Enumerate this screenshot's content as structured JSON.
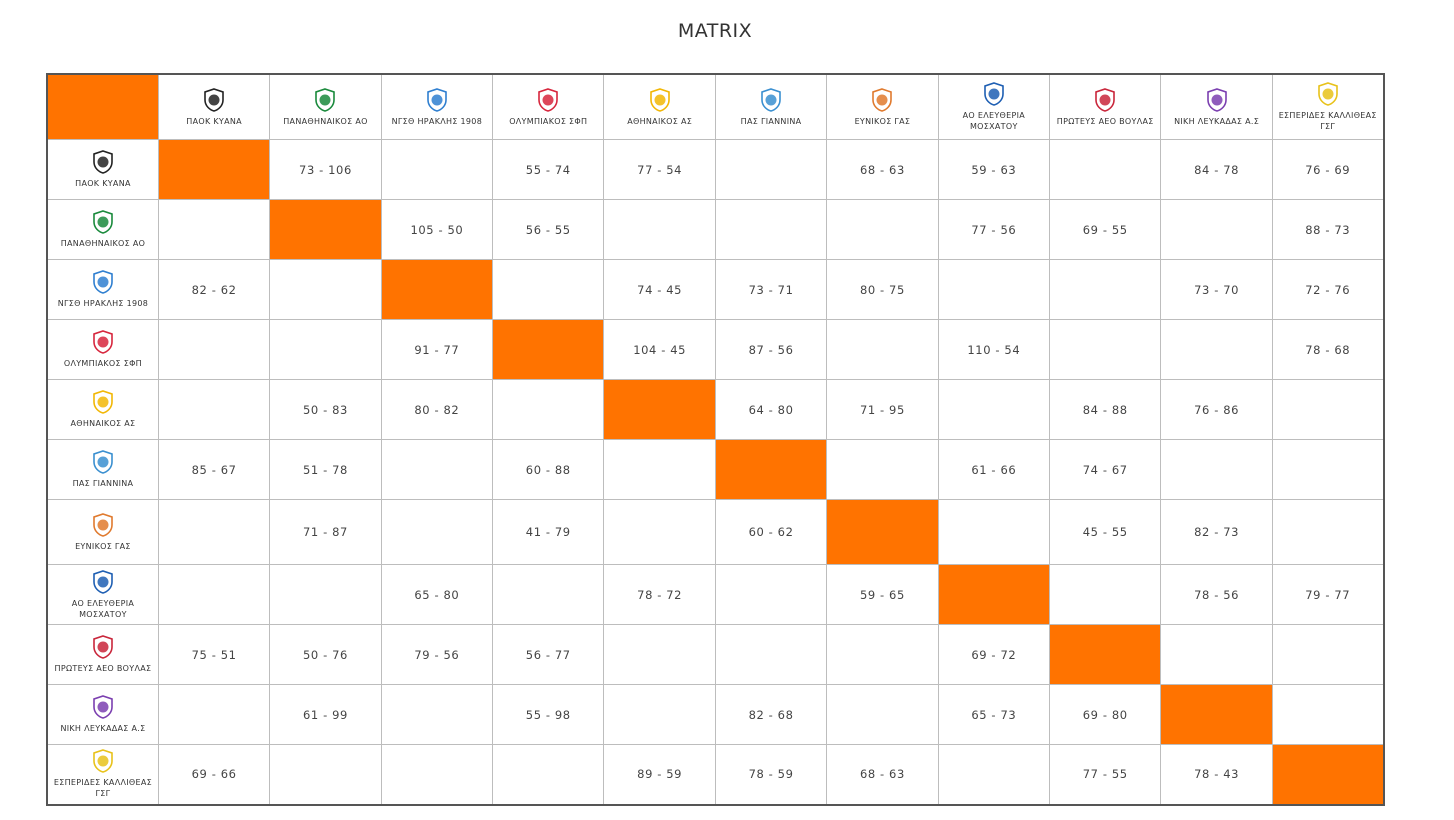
{
  "title": "MATRIX",
  "teams": [
    {
      "name": "ΠΑΟΚ ΚΥΑΝΑ",
      "icon": "paok-logo-icon",
      "color": "#222222"
    },
    {
      "name": "ΠΑΝΑΘΗΝΑΙΚΟΣ ΑΟ",
      "icon": "panathinaikos-logo-icon",
      "color": "#1a8a3c"
    },
    {
      "name": "ΝΓΣΘ ΗΡΑΚΛΗΣ 1908",
      "icon": "iraklis-logo-icon",
      "color": "#2f7fd0"
    },
    {
      "name": "ΟΛΥΜΠΙΑΚΟΣ ΣΦΠ",
      "icon": "olympiakos-logo-icon",
      "color": "#d7263d"
    },
    {
      "name": "ΑΘΗΝΑΙΚΟΣ ΑΣ",
      "icon": "athinaikos-logo-icon",
      "color": "#f2b705"
    },
    {
      "name": "ΠΑΣ ΓΙΑΝΝΙΝΑ",
      "icon": "pas-giannina-logo-icon",
      "color": "#3a8fd0"
    },
    {
      "name": "ΕΥΝΙΚΟΣ ΓΑΣ",
      "icon": "eynikos-logo-icon",
      "color": "#e07a2e"
    },
    {
      "name": "ΑΟ ΕΛΕΥΘΕΡΙΑ ΜΟΣΧΑΤΟΥ",
      "icon": "eleftheria-logo-icon",
      "color": "#1e5fb3"
    },
    {
      "name": "ΠΡΩΤΕΥΣ ΑΕΟ ΒΟΥΛΑΣ",
      "icon": "proteas-logo-icon",
      "color": "#c9263b"
    },
    {
      "name": "ΝΙΚΗ ΛΕΥΚΑΔΑΣ Α.Σ",
      "icon": "niki-logo-icon",
      "color": "#7b3fb0"
    },
    {
      "name": "ΕΣΠΕΡΙΔΕΣ ΚΑΛΛΙΘΕΑΣ ΓΣΓ",
      "icon": "esperides-logo-icon",
      "color": "#e8c21a"
    }
  ],
  "results": [
    [
      "",
      "73 - 106",
      "",
      "55 - 74",
      "77 - 54",
      "",
      "68 - 63",
      "59 - 63",
      "",
      "84 - 78",
      "76 - 69"
    ],
    [
      "",
      "",
      "105 - 50",
      "56 - 55",
      "",
      "",
      "",
      "77 - 56",
      "69 - 55",
      "",
      "88 - 73"
    ],
    [
      "82 - 62",
      "",
      "",
      "",
      "74 - 45",
      "73 - 71",
      "80 - 75",
      "",
      "",
      "73 - 70",
      "72 - 76"
    ],
    [
      "",
      "",
      "91 - 77",
      "",
      "104 - 45",
      "87 - 56",
      "",
      "110 - 54",
      "",
      "",
      "78 - 68"
    ],
    [
      "",
      "50 - 83",
      "80 - 82",
      "",
      "",
      "64 - 80",
      "71 - 95",
      "",
      "84 - 88",
      "76 - 86",
      ""
    ],
    [
      "85 - 67",
      "51 - 78",
      "",
      "60 - 88",
      "",
      "",
      "",
      "61 - 66",
      "74 - 67",
      "",
      ""
    ],
    [
      "",
      "71 - 87",
      "",
      "41 - 79",
      "",
      "60 - 62",
      "",
      "",
      "45 - 55",
      "82 - 73",
      ""
    ],
    [
      "",
      "",
      "65 - 80",
      "",
      "78 - 72",
      "",
      "59 - 65",
      "",
      "",
      "78 - 56",
      "79 - 77"
    ],
    [
      "75 - 51",
      "50 - 76",
      "79 - 56",
      "56 - 77",
      "",
      "",
      "",
      "69 - 72",
      "",
      "",
      ""
    ],
    [
      "",
      "61 - 99",
      "",
      "55 - 98",
      "",
      "82 - 68",
      "",
      "65 - 73",
      "69 - 80",
      "",
      ""
    ],
    [
      "69 - 66",
      "",
      "",
      "",
      "89 - 59",
      "78 - 59",
      "68 - 63",
      "",
      "77 - 55",
      "78 - 43",
      ""
    ]
  ],
  "colors": {
    "diagonal": "#ff7300",
    "corner": "#ff7300",
    "border": "#555555"
  }
}
